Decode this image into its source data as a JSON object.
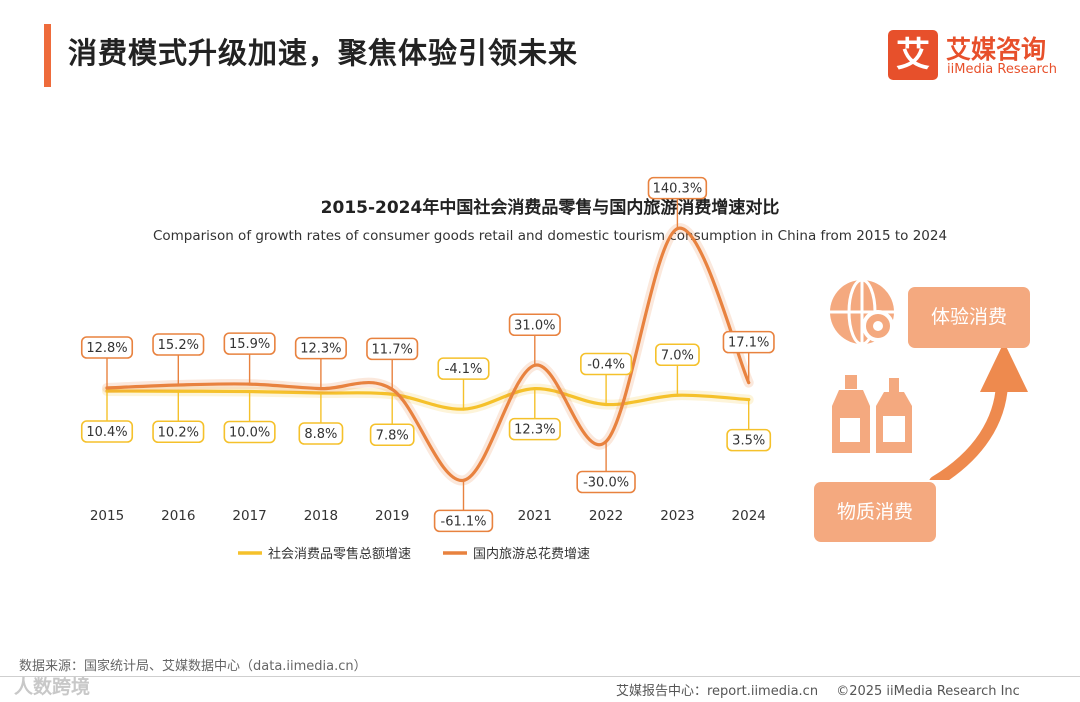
{
  "header": {
    "title": "消费模式升级加速，聚焦体验引领未来"
  },
  "logo": {
    "mark": "艾",
    "name_cn": "艾媒咨询",
    "name_en": "iiMedia Research"
  },
  "chart_data": {
    "type": "line",
    "title": "2015-2024年中国社会消费品零售与国内旅游消费增速对比",
    "subtitle": "Comparison of growth rates of consumer goods retail and domestic tourism consumption in China from 2015 to 2024",
    "categories": [
      "2015",
      "2016",
      "2017",
      "2018",
      "2019",
      "2020",
      "2021",
      "2022",
      "2023",
      "2024"
    ],
    "series": [
      {
        "name": "社会消费品零售总额增速",
        "color": "#f5c12b",
        "values": [
          10.4,
          10.2,
          10.0,
          8.8,
          7.8,
          -4.1,
          12.3,
          -0.4,
          7.0,
          3.5
        ],
        "labels": [
          "10.4%",
          "10.2%",
          "10.0%",
          "8.8%",
          "7.8%",
          "-4.1%",
          "12.3%",
          "-0.4%",
          "7.0%",
          "3.5%"
        ]
      },
      {
        "name": "国内旅游总花费增速",
        "color": "#e8823f",
        "values": [
          12.8,
          15.2,
          15.9,
          12.3,
          11.7,
          -61.1,
          31.0,
          -30.0,
          140.3,
          17.1
        ],
        "labels": [
          "12.8%",
          "15.2%",
          "15.9%",
          "12.3%",
          "11.7%",
          "-61.1%",
          "31.0%",
          "-30.0%",
          "140.3%",
          "17.1%"
        ]
      }
    ],
    "unit": "%",
    "legend": "bottom",
    "grid": false
  },
  "side": {
    "experience": "体验消费",
    "material": "物质消费"
  },
  "footer": {
    "source": "数据来源：国家统计局、艾媒数据中心（data.iimedia.cn）",
    "watermark": "人数跨境",
    "report_center": "艾媒报告中心：report.iimedia.cn",
    "copyright": "©2025  iiMedia Research  Inc"
  }
}
